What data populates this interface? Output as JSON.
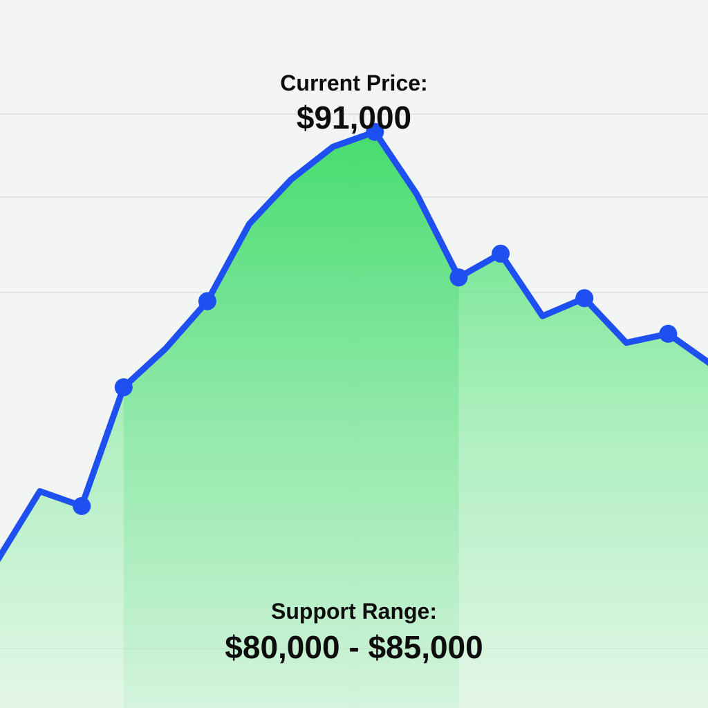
{
  "annotations": {
    "current_price_title": "Current Price:",
    "current_price_value": "$91,000",
    "support_range_title": "Support Range:",
    "support_range_value": "$80,000 - $85,000"
  },
  "colors": {
    "background": "#f3f4f4",
    "line": "#1e4ff0",
    "fill": "#3ee06a",
    "support_band": "#2fd45e",
    "grid": "#dcdede",
    "text": "#0d0d0d"
  },
  "chart_data": {
    "type": "area",
    "title": "",
    "xlabel": "",
    "ylabel": "",
    "grid": true,
    "legend": "none",
    "x": [
      1,
      2,
      3,
      4,
      5,
      6,
      7,
      8,
      9,
      10,
      11,
      12,
      13,
      14,
      15,
      16,
      17,
      18
    ],
    "series": [
      {
        "values": [
          71000,
          73300,
          72800,
          76800,
          78100,
          79700,
          82300,
          83800,
          84900,
          85400,
          83300,
          80500,
          81300,
          79200,
          79800,
          78300,
          78600,
          77600
        ],
        "markers": [
          false,
          false,
          true,
          true,
          false,
          true,
          false,
          false,
          false,
          true,
          false,
          true,
          true,
          false,
          true,
          false,
          true,
          false
        ]
      }
    ],
    "ylim": [
      66000,
      86000
    ],
    "y_gridlines": [
      68000,
      80000,
      83200,
      86000
    ],
    "x_gridlines": [
      9.5
    ],
    "annotations": [
      {
        "text": "Current Price: $91,000",
        "at_x": 10
      },
      {
        "text": "Support Range: $80,000 - $85,000",
        "band_x": [
          4,
          12
        ]
      }
    ]
  }
}
